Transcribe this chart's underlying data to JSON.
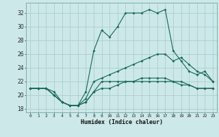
{
  "xlabel": "Humidex (Indice chaleur)",
  "xlim": [
    -0.5,
    23.5
  ],
  "ylim": [
    17.5,
    33.5
  ],
  "yticks": [
    18,
    20,
    22,
    24,
    26,
    28,
    30,
    32
  ],
  "xticks": [
    0,
    1,
    2,
    3,
    4,
    5,
    6,
    7,
    8,
    9,
    10,
    11,
    12,
    13,
    14,
    15,
    16,
    17,
    18,
    19,
    20,
    21,
    22,
    23
  ],
  "bg_color": "#cde8e8",
  "grid_color": "#aacece",
  "line_color": "#1a6b5a",
  "line1": [
    21,
    21,
    21,
    20,
    19,
    18.5,
    18.5,
    19,
    20.5,
    22,
    22,
    22,
    22,
    22,
    22,
    22,
    22,
    22,
    22,
    22,
    21.5,
    21,
    21,
    21
  ],
  "line2": [
    21,
    21,
    21,
    20.5,
    19,
    18.5,
    18.5,
    20.5,
    26.5,
    29.5,
    28.5,
    30,
    32,
    32,
    32,
    32.5,
    32,
    32.5,
    26.5,
    25,
    23.5,
    23,
    23.5,
    22
  ],
  "line3": [
    21,
    21,
    21,
    20,
    19,
    18.5,
    18.5,
    19.5,
    22,
    22.5,
    23,
    23.5,
    24,
    24.5,
    25,
    25.5,
    26,
    26,
    25,
    25.5,
    24.5,
    23.5,
    23,
    22
  ],
  "line4": [
    21,
    21,
    21,
    20,
    19,
    18.5,
    18.5,
    19,
    20.5,
    21,
    21,
    21.5,
    22,
    22,
    22.5,
    22.5,
    22.5,
    22.5,
    22,
    21.5,
    21.5,
    21,
    21,
    21
  ]
}
